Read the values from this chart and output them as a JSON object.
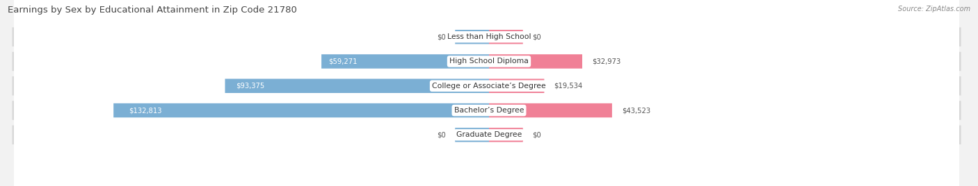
{
  "title": "Earnings by Sex by Educational Attainment in Zip Code 21780",
  "source": "Source: ZipAtlas.com",
  "categories": [
    "Less than High School",
    "High School Diploma",
    "College or Associate’s Degree",
    "Bachelor’s Degree",
    "Graduate Degree"
  ],
  "male_values": [
    0,
    59271,
    93375,
    132813,
    0
  ],
  "female_values": [
    0,
    32973,
    19534,
    43523,
    0
  ],
  "male_color": "#7bafd4",
  "female_color": "#f08096",
  "male_labels": [
    "$0",
    "$59,271",
    "$93,375",
    "$132,813",
    "$0"
  ],
  "female_labels": [
    "$0",
    "$32,973",
    "$19,534",
    "$43,523",
    "$0"
  ],
  "max_value": 150000,
  "stub_value": 12000,
  "background_color": "#f2f2f2",
  "row_bg_color": "#d8d8d8",
  "row_inner_color": "#ffffff",
  "title_color": "#444444",
  "source_color": "#888888",
  "label_color_dark": "#555555",
  "label_color_white": "#ffffff"
}
